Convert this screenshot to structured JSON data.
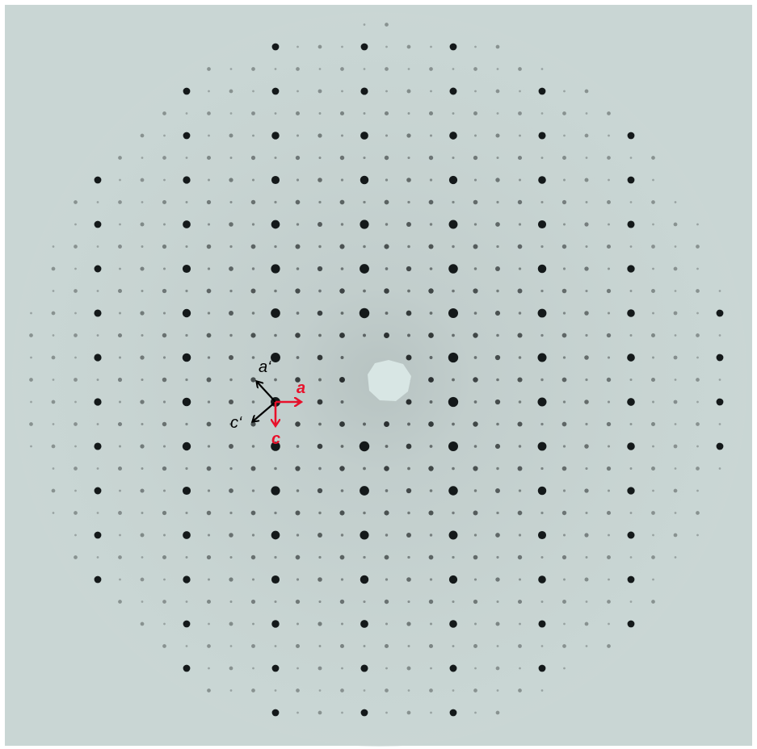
{
  "figure": {
    "background_color": "#c9d6d4",
    "halo_color": "#b4bfbe",
    "spot_color": "#0b0f10",
    "beamstop_color": "#d8e6e4"
  },
  "axes": {
    "primed": {
      "color": "#000000",
      "a_label": "a‘",
      "c_label": "c‘"
    },
    "unprimed": {
      "color": "#e8102a",
      "a_label": "a",
      "c_label": "c"
    }
  }
}
